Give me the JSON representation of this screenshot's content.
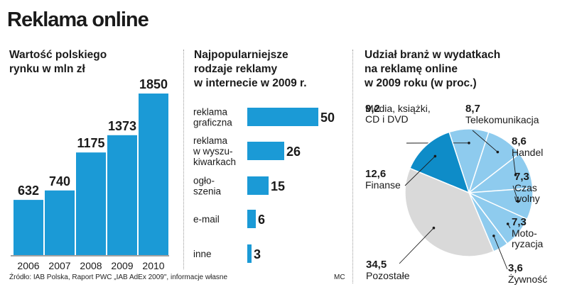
{
  "title": "Reklama online",
  "panels": [
    {
      "title_lines": [
        "Wartość polskiego",
        "rynku w mln zł"
      ]
    },
    {
      "title_lines": [
        "Najpopularniejsze",
        "rodzaje reklamy",
        "w internecie w 2009 r."
      ]
    },
    {
      "title_lines": [
        "Udział branż w wydatkach",
        "na reklamę online",
        "w 2009 roku (w proc.)"
      ]
    }
  ],
  "source": "Źródło: IAB Polska, Raport PWC „IAB AdEx 2009\", informacje własne",
  "credit": "MC",
  "colors": {
    "bar_blue": "#1b9ad6",
    "pie_light": "#8ecbee",
    "pie_dark": "#0e8cc8",
    "pie_grey": "#d9d9d9"
  },
  "chart_data": [
    {
      "type": "bar",
      "categories": [
        "2006",
        "2007",
        "2008",
        "2009",
        "2010"
      ],
      "values": [
        632,
        740,
        1175,
        1373,
        1850
      ],
      "value_labels": [
        "632",
        "740",
        "1175",
        "1373",
        "1850"
      ],
      "ylim": [
        0,
        1850
      ]
    },
    {
      "type": "bar",
      "orientation": "horizontal",
      "categories": [
        [
          "reklama",
          "graficzna"
        ],
        [
          "reklama",
          "w wyszu-",
          "kiwarkach"
        ],
        [
          "ogło-",
          "szenia"
        ],
        [
          "e-mail"
        ],
        [
          "inne"
        ]
      ],
      "values": [
        50,
        26,
        15,
        6,
        3
      ],
      "value_labels": [
        "50",
        "26",
        "15",
        "6",
        "3"
      ]
    },
    {
      "type": "pie",
      "slices": [
        {
          "label_lines": [
            "Media, książki,",
            "CD i DVD"
          ],
          "value": 9.2,
          "value_label": "9,2"
        },
        {
          "label_lines": [
            "Telekomunikacja"
          ],
          "value": 8.7,
          "value_label": "8,7"
        },
        {
          "label_lines": [
            "Handel"
          ],
          "value": 8.6,
          "value_label": "8,6"
        },
        {
          "label_lines": [
            "Czas",
            "wolny"
          ],
          "value": 7.3,
          "value_label": "7,3"
        },
        {
          "label_lines": [
            "Moto-",
            "ryzacja"
          ],
          "value": 7.3,
          "value_label": "7,3"
        },
        {
          "label_lines": [
            "Żywność"
          ],
          "value": 3.6,
          "value_label": "3,6"
        },
        {
          "label_lines": [
            "Pozostałe"
          ],
          "value": 34.5,
          "value_label": "34,5"
        },
        {
          "label_lines": [
            "Finanse"
          ],
          "value": 12.6,
          "value_label": "12,6"
        }
      ]
    }
  ]
}
